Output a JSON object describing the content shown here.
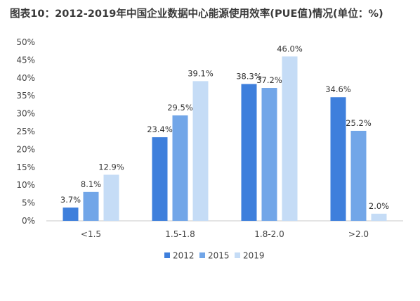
{
  "chart_data": {
    "type": "bar",
    "title": "图表10：2012-2019年中国企业数据中心能源使用效率(PUE值)情况(单位：%)",
    "categories": [
      "<1.5",
      "1.5-1.8",
      "1.8-2.0",
      ">2.0"
    ],
    "series": [
      {
        "name": "2012",
        "values": [
          3.7,
          23.4,
          38.3,
          34.6
        ],
        "color": "#3e7fdc"
      },
      {
        "name": "2015",
        "values": [
          8.1,
          29.5,
          37.2,
          25.2
        ],
        "color": "#72a6e8"
      },
      {
        "name": "2019",
        "values": [
          12.9,
          39.1,
          46.0,
          2.0
        ],
        "color": "#c5dcf6"
      }
    ],
    "data_labels": [
      [
        "3.7%",
        "23.4%",
        "38.3%",
        "34.6%"
      ],
      [
        "8.1%",
        "29.5%",
        "37.2%",
        "25.2%"
      ],
      [
        "12.9%",
        "39.1%",
        "46.0%",
        "2.0%"
      ]
    ],
    "y_ticks": [
      "0%",
      "5%",
      "10%",
      "15%",
      "20%",
      "25%",
      "30%",
      "35%",
      "40%",
      "45%",
      "50%"
    ],
    "ylim": [
      0,
      50
    ],
    "grid": false,
    "legend_position": "bottom",
    "xlabel": "",
    "ylabel": ""
  }
}
